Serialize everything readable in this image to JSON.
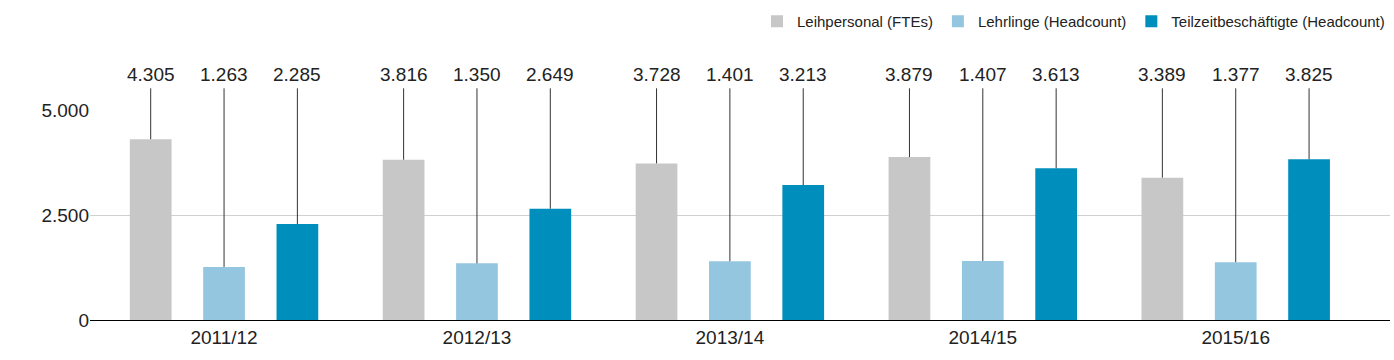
{
  "chart_data": {
    "type": "bar",
    "categories": [
      "2011/12",
      "2012/13",
      "2013/14",
      "2014/15",
      "2015/16"
    ],
    "series": [
      {
        "name": "Leihpersonal (FTEs)",
        "color": "#c6c7c6",
        "values": [
          4305,
          3816,
          3728,
          3879,
          3389
        ],
        "value_labels": [
          "4.305",
          "3.816",
          "3.728",
          "3.879",
          "3.389"
        ]
      },
      {
        "name": "Lehrlinge (Headcount)",
        "color": "#95c6e0",
        "values": [
          1263,
          1350,
          1401,
          1407,
          1377
        ],
        "value_labels": [
          "1.263",
          "1.350",
          "1.401",
          "1.407",
          "1.377"
        ]
      },
      {
        "name": "Teilzeitbeschäftigte (Headcount)",
        "color": "#008fbd",
        "values": [
          2285,
          2649,
          3213,
          3613,
          3825
        ],
        "value_labels": [
          "2.285",
          "2.649",
          "3.213",
          "3.613",
          "3.825"
        ]
      }
    ],
    "ylim": [
      0,
      5000
    ],
    "yticks": [
      0,
      {
        "value": 2500,
        "label": "2.500"
      },
      {
        "value": 5000,
        "label": "5.000"
      }
    ],
    "grid": true,
    "data_labels": true,
    "legend": "top right"
  }
}
